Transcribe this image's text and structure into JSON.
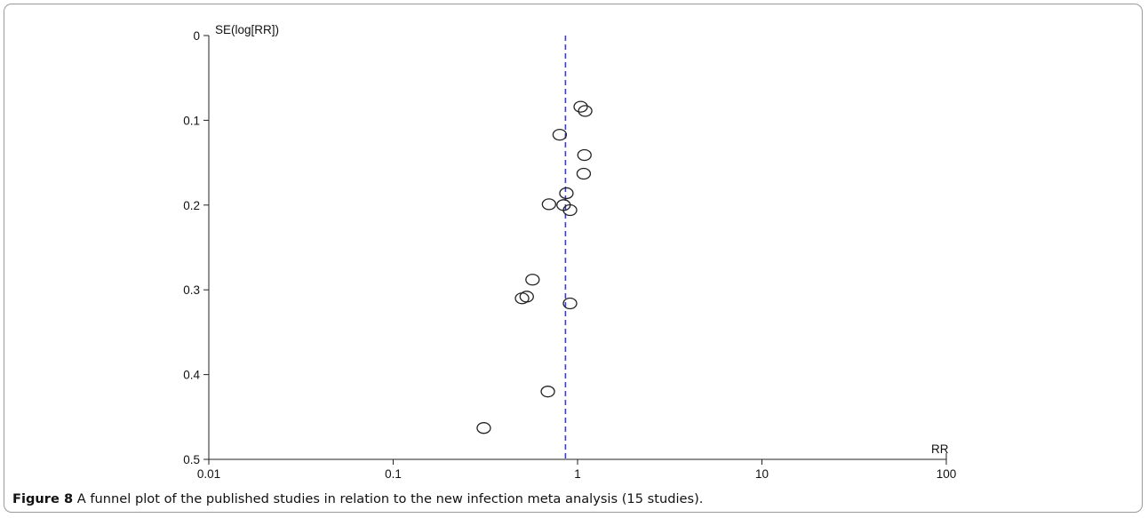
{
  "chart_data": {
    "type": "scatter",
    "subtype": "funnel",
    "title": "",
    "xlabel": "RR",
    "ylabel": "SE(log[RR])",
    "x_scale": "log",
    "xlim": [
      0.01,
      100
    ],
    "ylim": [
      0,
      0.5
    ],
    "y_inverted": true,
    "x_tick_labels": [
      "0.01",
      "0.1",
      "1",
      "10",
      "100"
    ],
    "y_tick_labels": [
      "0",
      "0.1",
      "0.2",
      "0.3",
      "0.4",
      "0.5"
    ],
    "pooled_estimate": 0.86,
    "pooled_line_color": "#3b3bd6",
    "grid": false,
    "points": [
      {
        "x": 1.04,
        "y": 0.084
      },
      {
        "x": 1.1,
        "y": 0.089
      },
      {
        "x": 0.8,
        "y": 0.117
      },
      {
        "x": 1.09,
        "y": 0.141
      },
      {
        "x": 1.08,
        "y": 0.163
      },
      {
        "x": 0.87,
        "y": 0.186
      },
      {
        "x": 0.7,
        "y": 0.199
      },
      {
        "x": 0.84,
        "y": 0.2
      },
      {
        "x": 0.91,
        "y": 0.206
      },
      {
        "x": 0.57,
        "y": 0.288
      },
      {
        "x": 0.53,
        "y": 0.308
      },
      {
        "x": 0.5,
        "y": 0.31
      },
      {
        "x": 0.91,
        "y": 0.316
      },
      {
        "x": 0.69,
        "y": 0.42
      },
      {
        "x": 0.31,
        "y": 0.463
      }
    ]
  },
  "caption": {
    "label": "Figure 8",
    "text": " A funnel plot of the published studies in relation to the new infection meta analysis (15 studies)."
  }
}
